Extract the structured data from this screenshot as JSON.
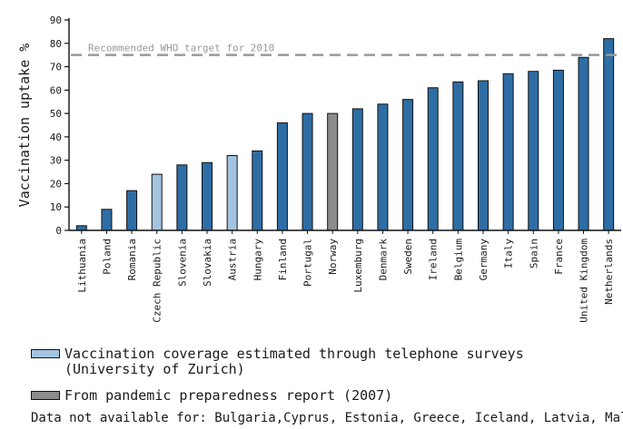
{
  "chart_data": {
    "type": "bar",
    "title": "",
    "xlabel": "",
    "ylabel": "Vaccination uptake %",
    "ylim": [
      0,
      90
    ],
    "yticks": [
      0,
      10,
      20,
      30,
      40,
      50,
      60,
      70,
      80,
      90
    ],
    "grid": false,
    "categories": [
      "Lithuania",
      "Poland",
      "Romania",
      "Czech Republic",
      "Slovenia",
      "Slovakia",
      "Austria",
      "Hungary",
      "Finland",
      "Portugal",
      "Norway",
      "Luxemburg",
      "Denmark",
      "Sweden",
      "Ireland",
      "Belgium",
      "Germany",
      "Italy",
      "Spain",
      "France",
      "United Kingdom",
      "Netherlands"
    ],
    "values": [
      2,
      9,
      17,
      24,
      28,
      29,
      32,
      34,
      46,
      50,
      50,
      52,
      54,
      56,
      61,
      63.5,
      64,
      67,
      68,
      68.5,
      74,
      82
    ],
    "bar_types": [
      "default",
      "default",
      "default",
      "telephone",
      "default",
      "default",
      "telephone",
      "default",
      "default",
      "default",
      "report",
      "default",
      "default",
      "default",
      "default",
      "default",
      "default",
      "default",
      "default",
      "default",
      "default",
      "default"
    ],
    "colors": {
      "default": "#2e6da4",
      "telephone": "#a3c4df",
      "report": "#8c8c8c",
      "target_line": "#999999",
      "axis": "#111111"
    },
    "reference_line": {
      "value": 75,
      "label": "Recommended WHO target for 2010"
    },
    "legend": [
      {
        "type": "telephone",
        "text_line1": "Vaccination coverage estimated through telephone surveys",
        "text_line2": "(University of Zurich)"
      },
      {
        "type": "report",
        "text_line1": "From pandemic preparedness report (2007)"
      }
    ],
    "note": "Data not available for: Bulgaria,Cyprus, Estonia, Greece, Iceland, Latvia, Malta"
  }
}
